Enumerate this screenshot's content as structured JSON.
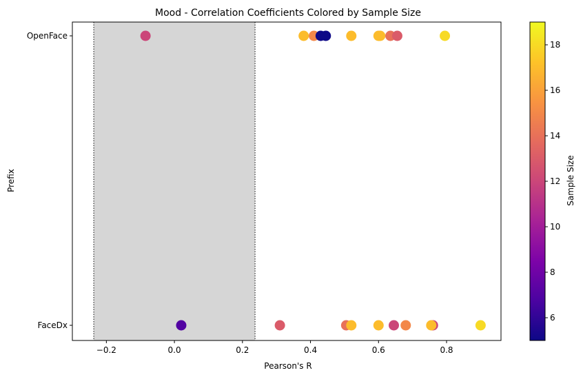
{
  "chart_data": {
    "type": "scatter",
    "title": "Mood - Correlation Coefficients Colored by Sample Size",
    "xlabel": "Pearson's R",
    "ylabel": "Prefix",
    "xlim": [
      -0.3,
      0.96
    ],
    "x_ticks": [
      "−0.2",
      "0.0",
      "0.2",
      "0.4",
      "0.6",
      "0.8"
    ],
    "x_tick_values": [
      -0.2,
      0.0,
      0.2,
      0.4,
      0.6,
      0.8
    ],
    "categories": [
      "OpenFace",
      "FaceDx"
    ],
    "shaded_region": {
      "x": [
        -0.237,
        0.237
      ],
      "color": "#d6d6d6",
      "boundary_style": "dotted"
    },
    "colorbar": {
      "label": "Sample Size",
      "colormap": "plasma",
      "range": [
        5,
        19
      ],
      "ticks": [
        "6",
        "8",
        "10",
        "12",
        "14",
        "16",
        "18"
      ],
      "tick_values": [
        6,
        8,
        10,
        12,
        14,
        16,
        18
      ]
    },
    "series": [
      {
        "category": "OpenFace",
        "points": [
          {
            "x": -0.085,
            "sample_size": 12
          },
          {
            "x": 0.38,
            "sample_size": 17
          },
          {
            "x": 0.41,
            "sample_size": 15
          },
          {
            "x": 0.43,
            "sample_size": 5
          },
          {
            "x": 0.445,
            "sample_size": 5
          },
          {
            "x": 0.52,
            "sample_size": 17
          },
          {
            "x": 0.6,
            "sample_size": 17
          },
          {
            "x": 0.605,
            "sample_size": 17
          },
          {
            "x": 0.635,
            "sample_size": 14
          },
          {
            "x": 0.655,
            "sample_size": 13
          },
          {
            "x": 0.795,
            "sample_size": 18
          }
        ]
      },
      {
        "category": "FaceDx",
        "points": [
          {
            "x": 0.02,
            "sample_size": 7
          },
          {
            "x": 0.31,
            "sample_size": 13
          },
          {
            "x": 0.505,
            "sample_size": 14
          },
          {
            "x": 0.52,
            "sample_size": 17
          },
          {
            "x": 0.6,
            "sample_size": 17
          },
          {
            "x": 0.645,
            "sample_size": 12
          },
          {
            "x": 0.68,
            "sample_size": 15
          },
          {
            "x": 0.76,
            "sample_size": 12
          },
          {
            "x": 0.755,
            "sample_size": 17
          },
          {
            "x": 0.9,
            "sample_size": 18
          }
        ]
      }
    ]
  }
}
